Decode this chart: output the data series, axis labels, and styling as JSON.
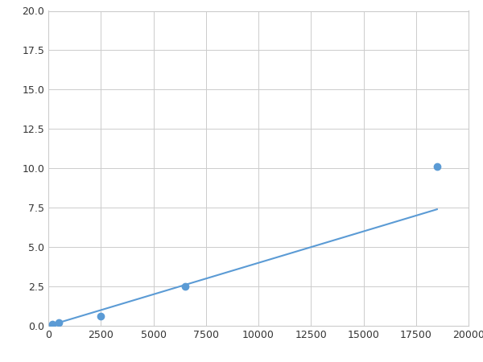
{
  "x": [
    200,
    500,
    2500,
    6500,
    18500
  ],
  "y": [
    0.1,
    0.2,
    0.6,
    2.5,
    10.1
  ],
  "line_color": "#5b9bd5",
  "marker_color": "#5b9bd5",
  "marker_size": 6,
  "xlim": [
    0,
    20000
  ],
  "ylim": [
    0,
    20.0
  ],
  "xticks": [
    0,
    2500,
    5000,
    7500,
    10000,
    12500,
    15000,
    17500,
    20000
  ],
  "yticks": [
    0.0,
    2.5,
    5.0,
    7.5,
    10.0,
    12.5,
    15.0,
    17.5,
    20.0
  ],
  "grid": true,
  "background_color": "#ffffff",
  "fig_width": 6.0,
  "fig_height": 4.5,
  "dpi": 100
}
